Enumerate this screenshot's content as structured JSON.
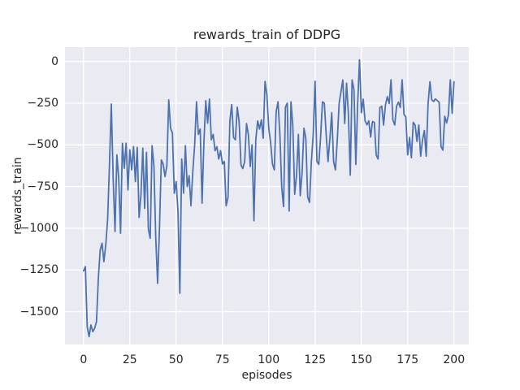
{
  "chart_data": {
    "type": "line",
    "title": "rewards_train of DDPG",
    "xlabel": "episodes",
    "ylabel": "rewards_train",
    "legend": null,
    "grid": true,
    "axes_background": "#eaeaf2",
    "grid_color": "#ffffff",
    "line_color": "#4c72b0",
    "text_color": "#262626",
    "xlim": [
      -10,
      208
    ],
    "ylim": [
      -1697,
      86
    ],
    "x_ticks": [
      0,
      25,
      50,
      75,
      100,
      125,
      150,
      175,
      200
    ],
    "x_tick_labels": [
      "0",
      "25",
      "50",
      "75",
      "100",
      "125",
      "150",
      "175",
      "200"
    ],
    "y_ticks": [
      0,
      -250,
      -500,
      -750,
      -1000,
      -1250,
      -1500
    ],
    "y_tick_labels": [
      "0",
      "−250",
      "−500",
      "−750",
      "−1000",
      "−1250",
      "−1500"
    ],
    "series": [
      {
        "name": "rewards_train",
        "x_start": 0,
        "x_step": 1,
        "values": [
          -1255,
          -1230,
          -1590,
          -1650,
          -1580,
          -1620,
          -1600,
          -1560,
          -1300,
          -1130,
          -1090,
          -1200,
          -1100,
          -950,
          -620,
          -255,
          -700,
          -1020,
          -560,
          -700,
          -1030,
          -490,
          -640,
          -490,
          -770,
          -530,
          -650,
          -510,
          -720,
          -515,
          -935,
          -800,
          -520,
          -880,
          -545,
          -1005,
          -1060,
          -505,
          -625,
          -1060,
          -1330,
          -1000,
          -590,
          -615,
          -690,
          -625,
          -230,
          -400,
          -430,
          -790,
          -720,
          -900,
          -1390,
          -585,
          -790,
          -505,
          -750,
          -685,
          -865,
          -660,
          -500,
          -242,
          -437,
          -405,
          -850,
          -480,
          -235,
          -370,
          -225,
          -470,
          -437,
          -535,
          -511,
          -585,
          -535,
          -615,
          -600,
          -865,
          -815,
          -356,
          -258,
          -455,
          -470,
          -274,
          -360,
          -620,
          -642,
          -600,
          -372,
          -440,
          -630,
          -500,
          -955,
          -470,
          -356,
          -405,
          -350,
          -460,
          -120,
          -200,
          -400,
          -485,
          -615,
          -650,
          -300,
          -242,
          -437,
          -756,
          -870,
          -274,
          -250,
          -897,
          -242,
          -389,
          -796,
          -682,
          -437,
          -805,
          -666,
          -400,
          -460,
          -812,
          -845,
          -600,
          -437,
          -119,
          -600,
          -617,
          -453,
          -242,
          -250,
          -437,
          -600,
          -462,
          -307,
          -600,
          -650,
          -470,
          -250,
          -180,
          -111,
          -372,
          -130,
          -315,
          -682,
          -111,
          -168,
          -617,
          -250,
          10,
          -307,
          -226,
          -356,
          -380,
          -356,
          -453,
          -360,
          -365,
          -560,
          -585,
          -276,
          -268,
          -381,
          -260,
          -211,
          -252,
          -110,
          -350,
          -381,
          -268,
          -244,
          -276,
          -110,
          -317,
          -333,
          -560,
          -455,
          -577,
          -365,
          -381,
          -479,
          -381,
          -568,
          -471,
          -414,
          -568,
          -255,
          -122,
          -230,
          -240,
          -225,
          -235,
          -245,
          -510,
          -532,
          -328,
          -369,
          -320,
          -110,
          -311,
          -122
        ]
      }
    ]
  }
}
